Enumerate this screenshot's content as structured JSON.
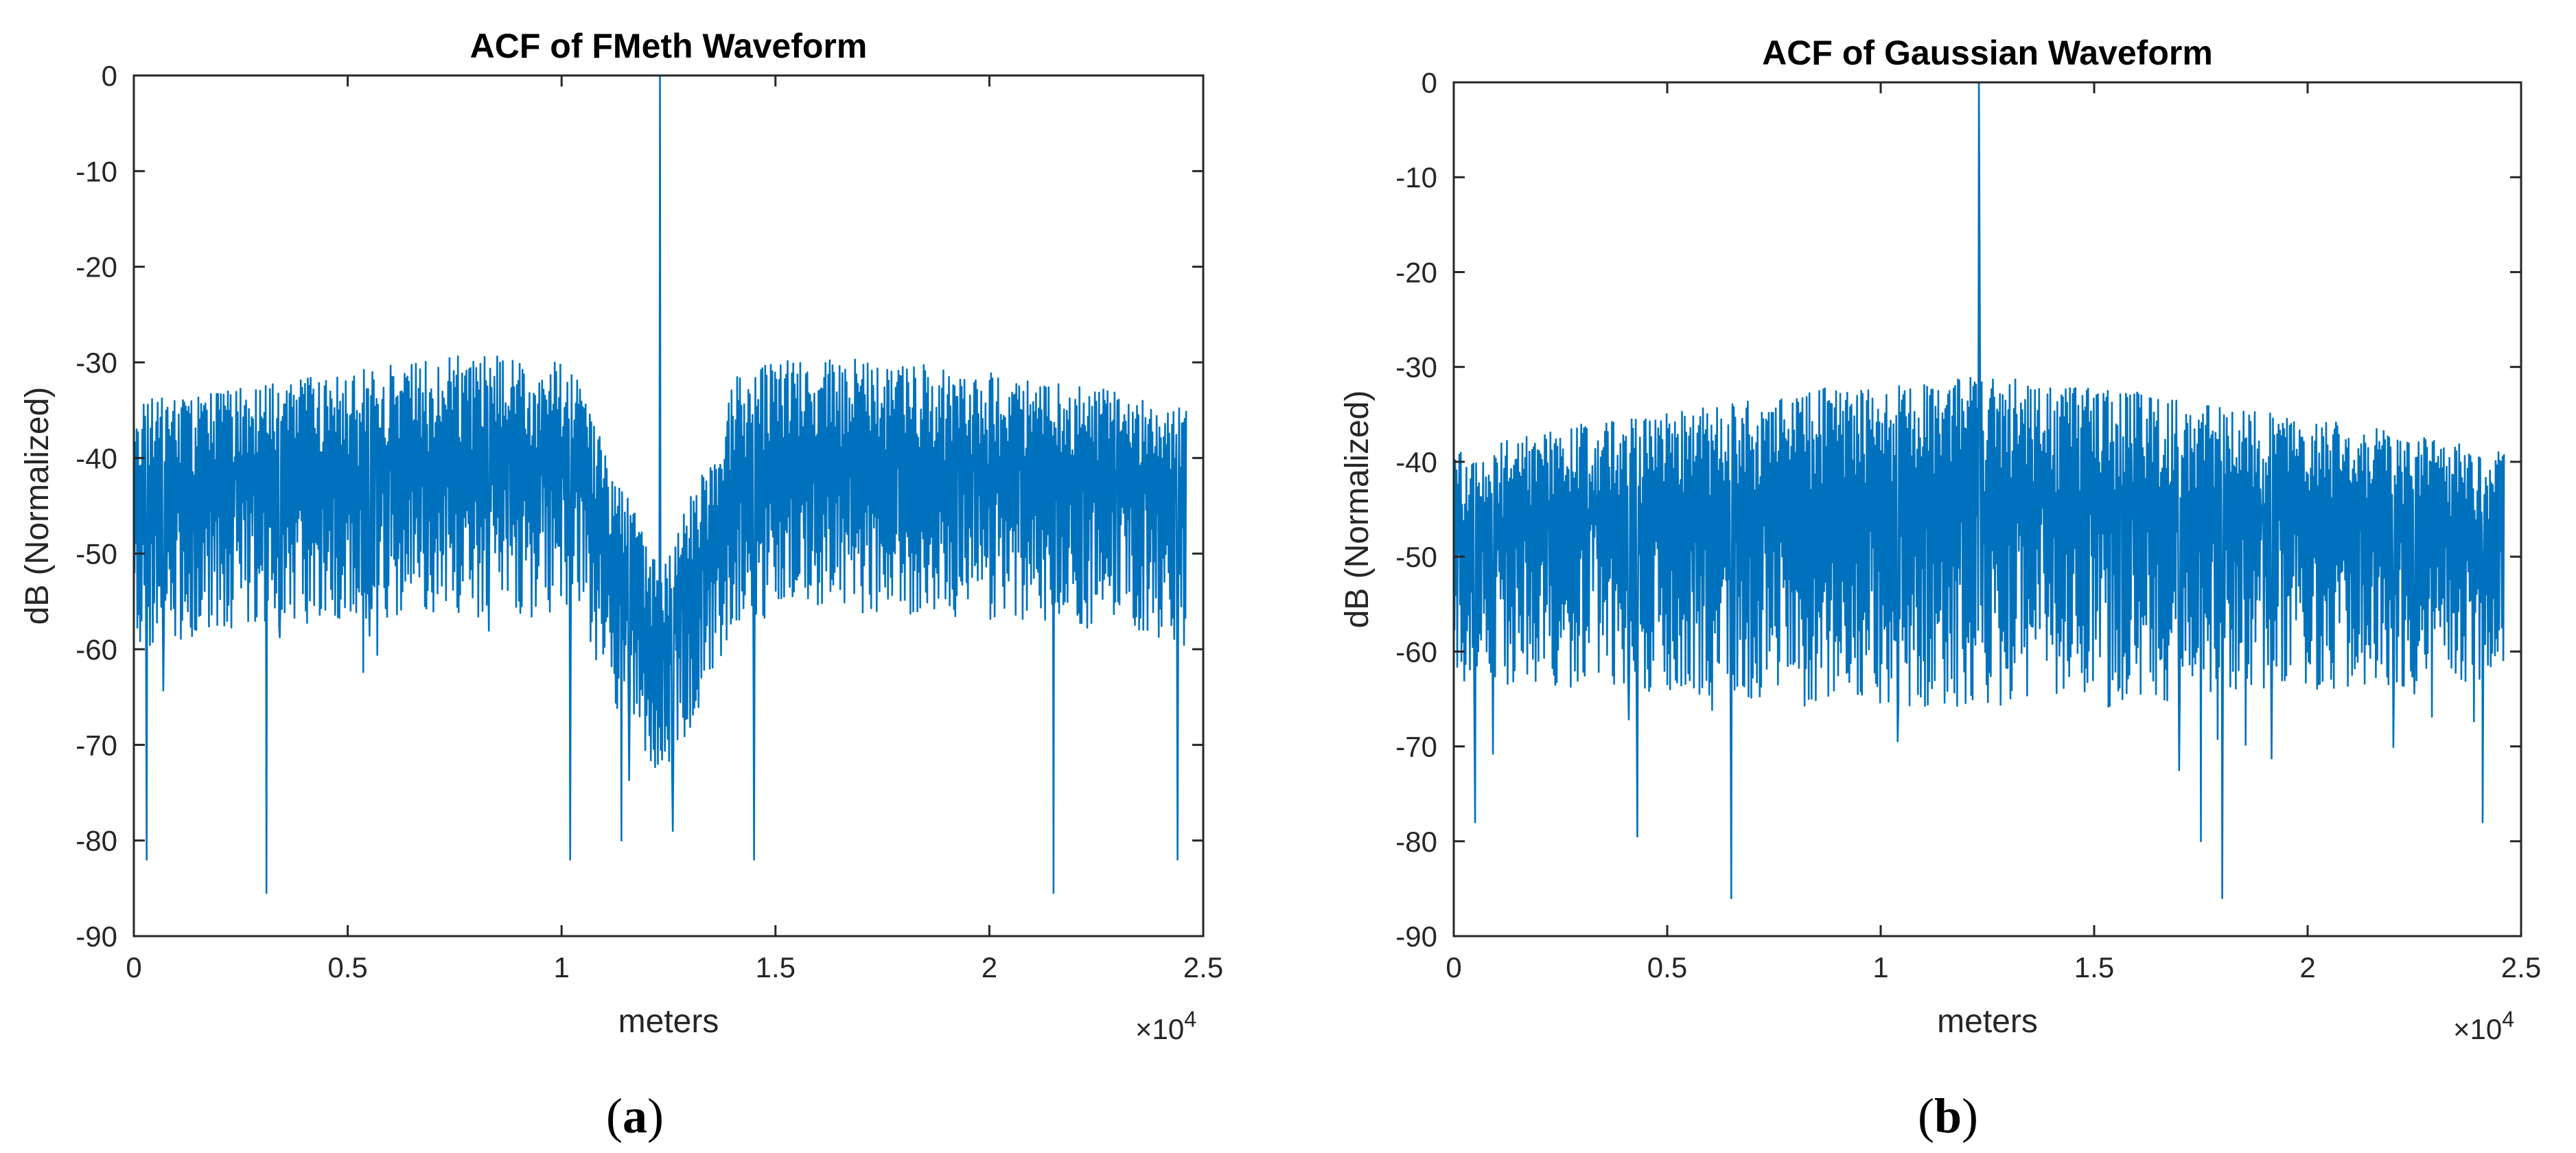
{
  "chart_data": [
    {
      "type": "line",
      "title": "ACF of FMeth Waveform",
      "xlabel": "meters",
      "ylabel": "dB (Normalized)",
      "x_multiplier_label": "×10",
      "x_multiplier_exp": "4",
      "xlim": [
        0,
        2.5
      ],
      "ylim": [
        -90,
        0
      ],
      "xticks": [
        0,
        0.5,
        1,
        1.5,
        2,
        2.5
      ],
      "yticks": [
        0,
        -10,
        -20,
        -30,
        -40,
        -50,
        -60,
        -70,
        -80,
        -90
      ],
      "x_data_range": [
        0,
        2.46
      ],
      "peak": {
        "x": 1.23,
        "y": 0
      },
      "series": [
        {
          "name": "ACF",
          "color": "#0072BD",
          "envelope_x": [
            0,
            0.2,
            0.5,
            0.8,
            1.0,
            1.06,
            1.08,
            1.15,
            1.2,
            1.23,
            1.26,
            1.31,
            1.38,
            1.4,
            1.6,
            2.0,
            2.3,
            2.46
          ],
          "envelope_upper": [
            -34,
            -33,
            -31,
            -29,
            -30,
            -32,
            -37,
            -43,
            -49,
            -52,
            -49,
            -43,
            -37,
            -31,
            -29,
            -31,
            -33,
            -35
          ],
          "envelope_mean": [
            -43,
            -42,
            -41,
            -40,
            -41,
            -42,
            -46,
            -52,
            -57,
            -60,
            -57,
            -52,
            -46,
            -42,
            -40,
            -41,
            -42,
            -43
          ],
          "envelope_lower": [
            -60,
            -58,
            -57,
            -56,
            -57,
            -58,
            -62,
            -68,
            -72,
            -74,
            -72,
            -68,
            -62,
            -58,
            -56,
            -57,
            -58,
            -60
          ],
          "min_spikes": [
            [
              0.03,
              -82
            ],
            [
              0.31,
              -85.5
            ],
            [
              1.02,
              -82
            ],
            [
              1.14,
              -80
            ],
            [
              1.26,
              -79
            ],
            [
              1.45,
              -82
            ],
            [
              2.15,
              -85.5
            ],
            [
              2.44,
              -82
            ]
          ]
        }
      ]
    },
    {
      "type": "line",
      "title": "ACF of Gaussian Waveform",
      "xlabel": "meters",
      "ylabel": "dB (Normalized)",
      "x_multiplier_label": "×10",
      "x_multiplier_exp": "4",
      "xlim": [
        0,
        2.5
      ],
      "ylim": [
        -90,
        0
      ],
      "xticks": [
        0,
        0.5,
        1,
        1.5,
        2,
        2.5
      ],
      "yticks": [
        0,
        -10,
        -20,
        -30,
        -40,
        -50,
        -60,
        -70,
        -80,
        -90
      ],
      "x_data_range": [
        0,
        2.46
      ],
      "peak": {
        "x": 1.23,
        "y": 0
      },
      "series": [
        {
          "name": "ACF",
          "color": "#0072BD",
          "envelope_x": [
            0,
            0.3,
            0.6,
            0.9,
            1.23,
            1.5,
            1.8,
            2.1,
            2.46
          ],
          "envelope_upper": [
            -39,
            -36,
            -34,
            -32,
            -31,
            -32,
            -34,
            -36,
            -39
          ],
          "envelope_mean": [
            -47,
            -46,
            -45,
            -44,
            -44,
            -44,
            -45,
            -46,
            -47
          ],
          "envelope_lower": [
            -63,
            -64,
            -65,
            -66,
            -66,
            -66,
            -65,
            -64,
            -63
          ],
          "min_spikes": [
            [
              0.05,
              -78
            ],
            [
              0.43,
              -79.5
            ],
            [
              0.65,
              -86
            ],
            [
              1.75,
              -80
            ],
            [
              1.8,
              -86
            ],
            [
              2.41,
              -78
            ]
          ]
        }
      ]
    }
  ],
  "panels": [
    {
      "open": "(",
      "letter": "a",
      "close": ")"
    },
    {
      "open": "(",
      "letter": "b",
      "close": ")"
    }
  ]
}
